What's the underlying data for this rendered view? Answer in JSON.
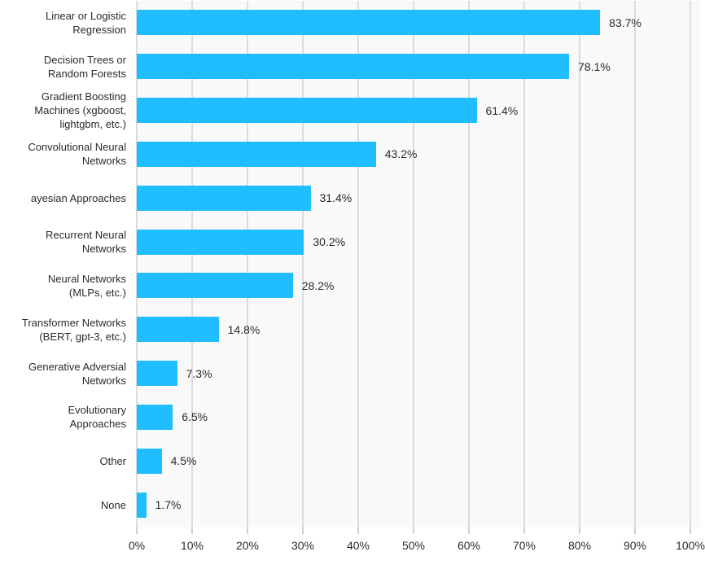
{
  "chart_data": {
    "type": "bar",
    "orientation": "horizontal",
    "title": "",
    "xlabel": "",
    "ylabel": "",
    "categories": [
      "Linear or Logistic\nRegression",
      "Decision Trees or\nRandom Forests",
      "Gradient Boosting\nMachines (xgboost,\nlightgbm, etc.)",
      "Convolutional Neural\nNetworks",
      "ayesian Approaches",
      "Recurrent Neural\nNetworks",
      "Neural Networks\n(MLPs, etc.)",
      "Transformer Networks\n(BERT, gpt-3, etc.)",
      "Generative Adversial\nNetworks",
      "Evolutionary\nApproaches",
      "Other",
      "None"
    ],
    "values": [
      83.7,
      78.1,
      61.4,
      43.2,
      31.4,
      30.2,
      28.2,
      14.8,
      7.3,
      6.5,
      4.5,
      1.7
    ],
    "value_labels": [
      "83.7%",
      "78.1%",
      "61.4%",
      "43.2%",
      "31.4%",
      "30.2%",
      "28.2%",
      "14.8%",
      "7.3%",
      "6.5%",
      "4.5%",
      "1.7%"
    ],
    "x_tick_labels": [
      "0%",
      "10%",
      "20%",
      "30%",
      "40%",
      "50%",
      "60%",
      "70%",
      "80%",
      "90%",
      "100%"
    ],
    "x_tick_values": [
      0,
      10,
      20,
      30,
      40,
      50,
      60,
      70,
      80,
      90,
      100
    ],
    "xlim": [
      0,
      100
    ],
    "grid": true,
    "legend": "none",
    "colors": {
      "bar": "#20BEFF",
      "plot_background": "#f9f9f9",
      "gridline": "#dcdcdc",
      "tick_mark": "#d0d0d0",
      "text": "#2b2b2b"
    }
  }
}
